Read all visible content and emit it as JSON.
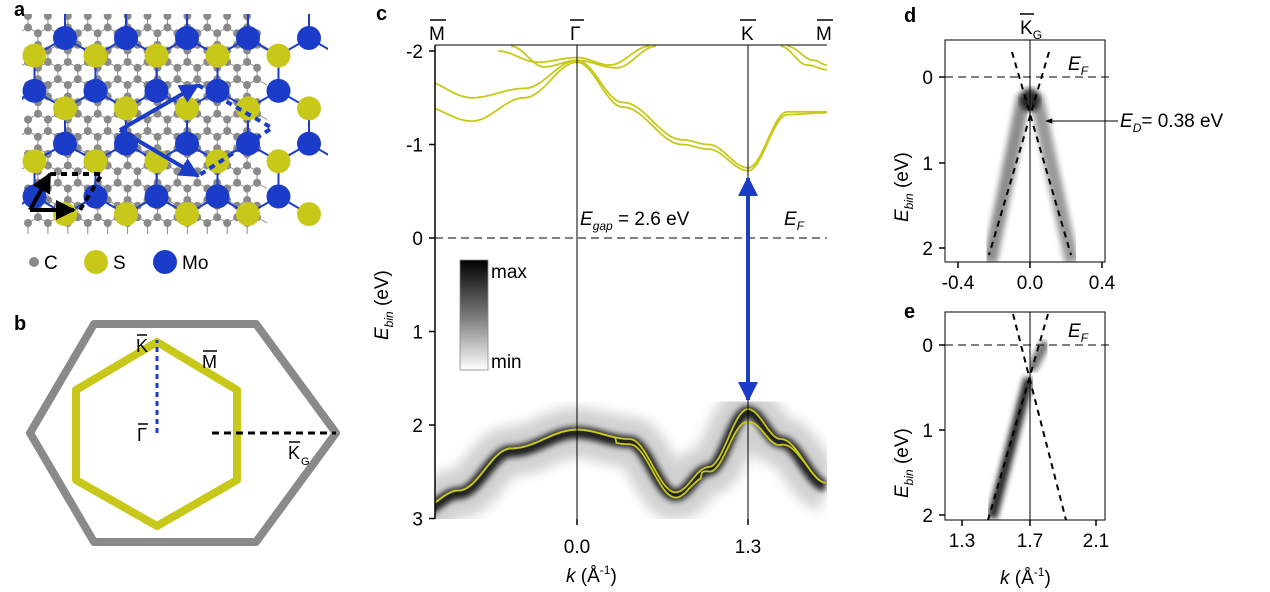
{
  "panels": {
    "a": {
      "label": "a",
      "legend": [
        {
          "symbol": "C",
          "color": "#8a8a8a"
        },
        {
          "symbol": "S",
          "color": "#c8c81a"
        },
        {
          "symbol": "Mo",
          "color": "#1a3cc8"
        }
      ]
    },
    "b": {
      "label": "b",
      "points": {
        "K": "K",
        "M": "M",
        "Gamma": "Γ",
        "KG_main": "K",
        "KG_sub": "G"
      },
      "colors": {
        "graphene_bz": "#8a8a8a",
        "mos2_bz": "#c8c81a",
        "cut_blue": "#1a3cc8"
      }
    },
    "c": {
      "label": "c",
      "top_labels": [
        "M",
        "Γ",
        "K",
        "M"
      ],
      "ylabel_main": "E",
      "ylabel_sub": "bin",
      "ylabel_unit": " (eV)",
      "xlabel_main": "k",
      "xlabel_unit": " (Å",
      "xlabel_sup": "-1",
      "xlabel_close": ")",
      "yticks": [
        "-2",
        "-1",
        "0",
        "1",
        "2",
        "3"
      ],
      "xticks": [
        "0.0",
        "1.3"
      ],
      "gap_main": "E",
      "gap_sub": "gap",
      "gap_rest": " = 2.6 eV",
      "ef_main": "E",
      "ef_sub": "F",
      "scale_max": "max",
      "scale_min": "min",
      "colors": {
        "bands": "#c8c81a",
        "arrow": "#1a3cc8"
      }
    },
    "d": {
      "label": "d",
      "top_main": "K",
      "top_sub": "G",
      "ylabel_main": "E",
      "ylabel_sub": "bin",
      "ylabel_unit": " (eV)",
      "yticks": [
        "0",
        "1",
        "2"
      ],
      "xticks": [
        "-0.4",
        "0.0",
        "0.4"
      ],
      "ef_main": "E",
      "ef_sub": "F",
      "ed_main": "E",
      "ed_sub": "D",
      "ed_rest": "= 0.38 eV"
    },
    "e": {
      "label": "e",
      "ylabel_main": "E",
      "ylabel_sub": "bin",
      "ylabel_unit": " (eV)",
      "yticks": [
        "0",
        "1",
        "2"
      ],
      "xticks": [
        "1.3",
        "1.7",
        "2.1"
      ],
      "xlabel_main": "k",
      "xlabel_unit": " (Å",
      "xlabel_sup": "-1",
      "xlabel_close": ")",
      "ef_main": "E",
      "ef_sub": "F"
    }
  },
  "chart_data": [
    {
      "type": "line",
      "panel": "c",
      "xlabel": "k (Å-1)",
      "ylabel": "Ebin (eV)",
      "ylim": [
        3,
        -2
      ],
      "xticks": [
        0.0,
        1.3
      ],
      "yticks": [
        -2,
        -1,
        0,
        1,
        2,
        3
      ],
      "annotations": [
        "Egap = 2.6 eV",
        "EF"
      ],
      "gap_arrow": {
        "k": 1.3,
        "from": -0.75,
        "to": 1.83
      },
      "bands": {
        "valence_top_k": [
          0.0,
          1.3
        ],
        "valence_max_E": [
          2.05,
          1.83
        ],
        "conduction_min_E_at_K": -0.75
      }
    },
    {
      "type": "line",
      "panel": "d",
      "ylabel": "Ebin (eV)",
      "ylim": [
        2,
        -0.3
      ],
      "xlim": [
        -0.45,
        0.45
      ],
      "xticks": [
        -0.4,
        0.0,
        0.4
      ],
      "yticks": [
        0,
        1,
        2
      ],
      "annotations": [
        "EF",
        "ED= 0.38 eV"
      ],
      "dirac_point_E": 0.38
    },
    {
      "type": "line",
      "panel": "e",
      "xlabel": "k (Å-1)",
      "ylabel": "Ebin (eV)",
      "ylim": [
        2,
        -0.3
      ],
      "xlim": [
        1.3,
        2.1
      ],
      "xticks": [
        1.3,
        1.7,
        2.1
      ],
      "yticks": [
        0,
        1,
        2
      ],
      "annotations": [
        "EF"
      ]
    }
  ]
}
